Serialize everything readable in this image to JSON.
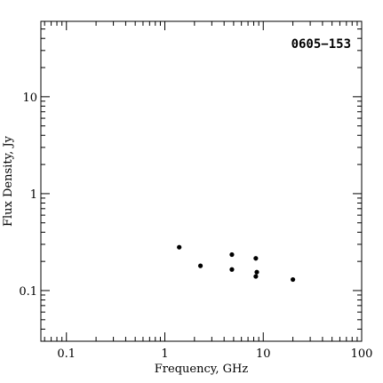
{
  "chart_data": {
    "type": "scatter",
    "title": "",
    "annotation": "0605−153",
    "xlabel": "Frequency, GHz",
    "ylabel": "Flux Density, Jy",
    "xscale": "log",
    "yscale": "log",
    "xlim": [
      0.055,
      100
    ],
    "ylim": [
      0.03,
      60
    ],
    "xticks": [
      {
        "value": 0.1,
        "label": "0.1"
      },
      {
        "value": 1,
        "label": "1"
      },
      {
        "value": 10,
        "label": "10"
      },
      {
        "value": 100,
        "label": "100"
      }
    ],
    "yticks": [
      {
        "value": 0.1,
        "label": "0.1"
      },
      {
        "value": 1,
        "label": "1"
      },
      {
        "value": 10,
        "label": "10"
      }
    ],
    "grid": false,
    "series": [
      {
        "marker": "dot",
        "color": "#000000",
        "points": [
          {
            "x": 1.4,
            "y": 0.28
          },
          {
            "x": 2.3,
            "y": 0.18
          },
          {
            "x": 4.8,
            "y": 0.235
          },
          {
            "x": 4.8,
            "y": 0.165
          },
          {
            "x": 8.4,
            "y": 0.215
          },
          {
            "x": 8.4,
            "y": 0.14
          },
          {
            "x": 8.6,
            "y": 0.155
          },
          {
            "x": 20,
            "y": 0.13
          }
        ]
      }
    ]
  }
}
